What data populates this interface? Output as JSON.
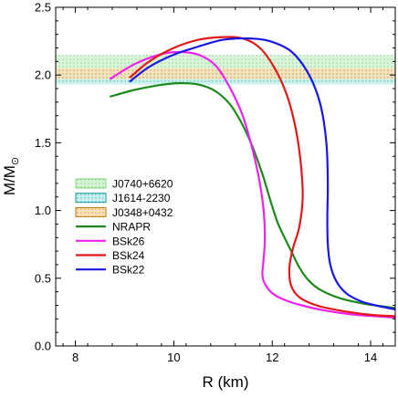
{
  "chart_data": {
    "type": "line",
    "xlabel": "R (km)",
    "ylabel_main": "M/M",
    "ylabel_sub": "⊙",
    "xlim": [
      7.6,
      14.5
    ],
    "ylim": [
      0.0,
      2.5
    ],
    "xticks": [
      8,
      10,
      12,
      14
    ],
    "xtick_labels": [
      "8",
      "10",
      "12",
      "14"
    ],
    "yticks": [
      0.0,
      0.5,
      1.0,
      1.5,
      2.0,
      2.5
    ],
    "ytick_labels": [
      "0.0",
      "0.5",
      "1.0",
      "1.5",
      "2.0",
      "2.5"
    ],
    "legend_position": "left-middle",
    "bands": [
      {
        "name": "J0740+6620",
        "range": [
          1.94,
          2.15
        ],
        "color": "#7dd87d",
        "pattern": "dots"
      },
      {
        "name": "J1614-2230",
        "range": [
          1.93,
          2.01
        ],
        "color": "#2ec4c4",
        "pattern": "dots"
      },
      {
        "name": "J0348+0432",
        "range": [
          1.97,
          2.05
        ],
        "color": "#e8a020",
        "pattern": "dots"
      }
    ],
    "series": [
      {
        "name": "NRAPR",
        "color": "#1a8a1a",
        "x": [
          8.7,
          9.2,
          9.7,
          10.1,
          10.5,
          10.85,
          11.15,
          11.4,
          11.6,
          11.8,
          11.95,
          12.1,
          12.25,
          12.4,
          12.55,
          12.75,
          13.0,
          13.4,
          13.9,
          14.5
        ],
        "y": [
          1.84,
          1.89,
          1.925,
          1.94,
          1.93,
          1.88,
          1.78,
          1.63,
          1.47,
          1.27,
          1.09,
          0.92,
          0.8,
          0.69,
          0.58,
          0.48,
          0.41,
          0.35,
          0.31,
          0.28
        ]
      },
      {
        "name": "BSk26",
        "color": "#ee22ee",
        "x": [
          8.7,
          9.2,
          9.7,
          10.1,
          10.5,
          10.85,
          11.15,
          11.4,
          11.6,
          11.75,
          11.83,
          11.85,
          11.82,
          11.8,
          11.85,
          12.0,
          12.25,
          12.6,
          13.1,
          13.7,
          14.5
        ],
        "y": [
          1.97,
          2.08,
          2.15,
          2.17,
          2.15,
          2.07,
          1.9,
          1.7,
          1.45,
          1.2,
          0.98,
          0.78,
          0.62,
          0.53,
          0.46,
          0.39,
          0.34,
          0.3,
          0.26,
          0.23,
          0.21
        ]
      },
      {
        "name": "BSk24",
        "color": "#e21818",
        "x": [
          9.1,
          9.5,
          10.0,
          10.5,
          11.0,
          11.4,
          11.75,
          12.05,
          12.3,
          12.48,
          12.58,
          12.62,
          12.55,
          12.42,
          12.35,
          12.38,
          12.55,
          12.9,
          13.4,
          14.0,
          14.5
        ],
        "y": [
          1.98,
          2.1,
          2.2,
          2.26,
          2.28,
          2.27,
          2.2,
          2.05,
          1.85,
          1.6,
          1.35,
          1.1,
          0.88,
          0.72,
          0.58,
          0.45,
          0.36,
          0.3,
          0.26,
          0.23,
          0.22
        ]
      },
      {
        "name": "BSk22",
        "color": "#1818e2",
        "x": [
          9.1,
          9.5,
          10.0,
          10.5,
          11.0,
          11.5,
          11.95,
          12.4,
          12.75,
          12.98,
          13.1,
          13.13,
          13.12,
          13.13,
          13.18,
          13.3,
          13.5,
          13.8,
          14.1,
          14.5
        ],
        "y": [
          1.95,
          2.06,
          2.15,
          2.21,
          2.26,
          2.27,
          2.25,
          2.17,
          2.0,
          1.78,
          1.5,
          1.2,
          0.95,
          0.75,
          0.6,
          0.48,
          0.39,
          0.33,
          0.3,
          0.27
        ]
      }
    ]
  }
}
